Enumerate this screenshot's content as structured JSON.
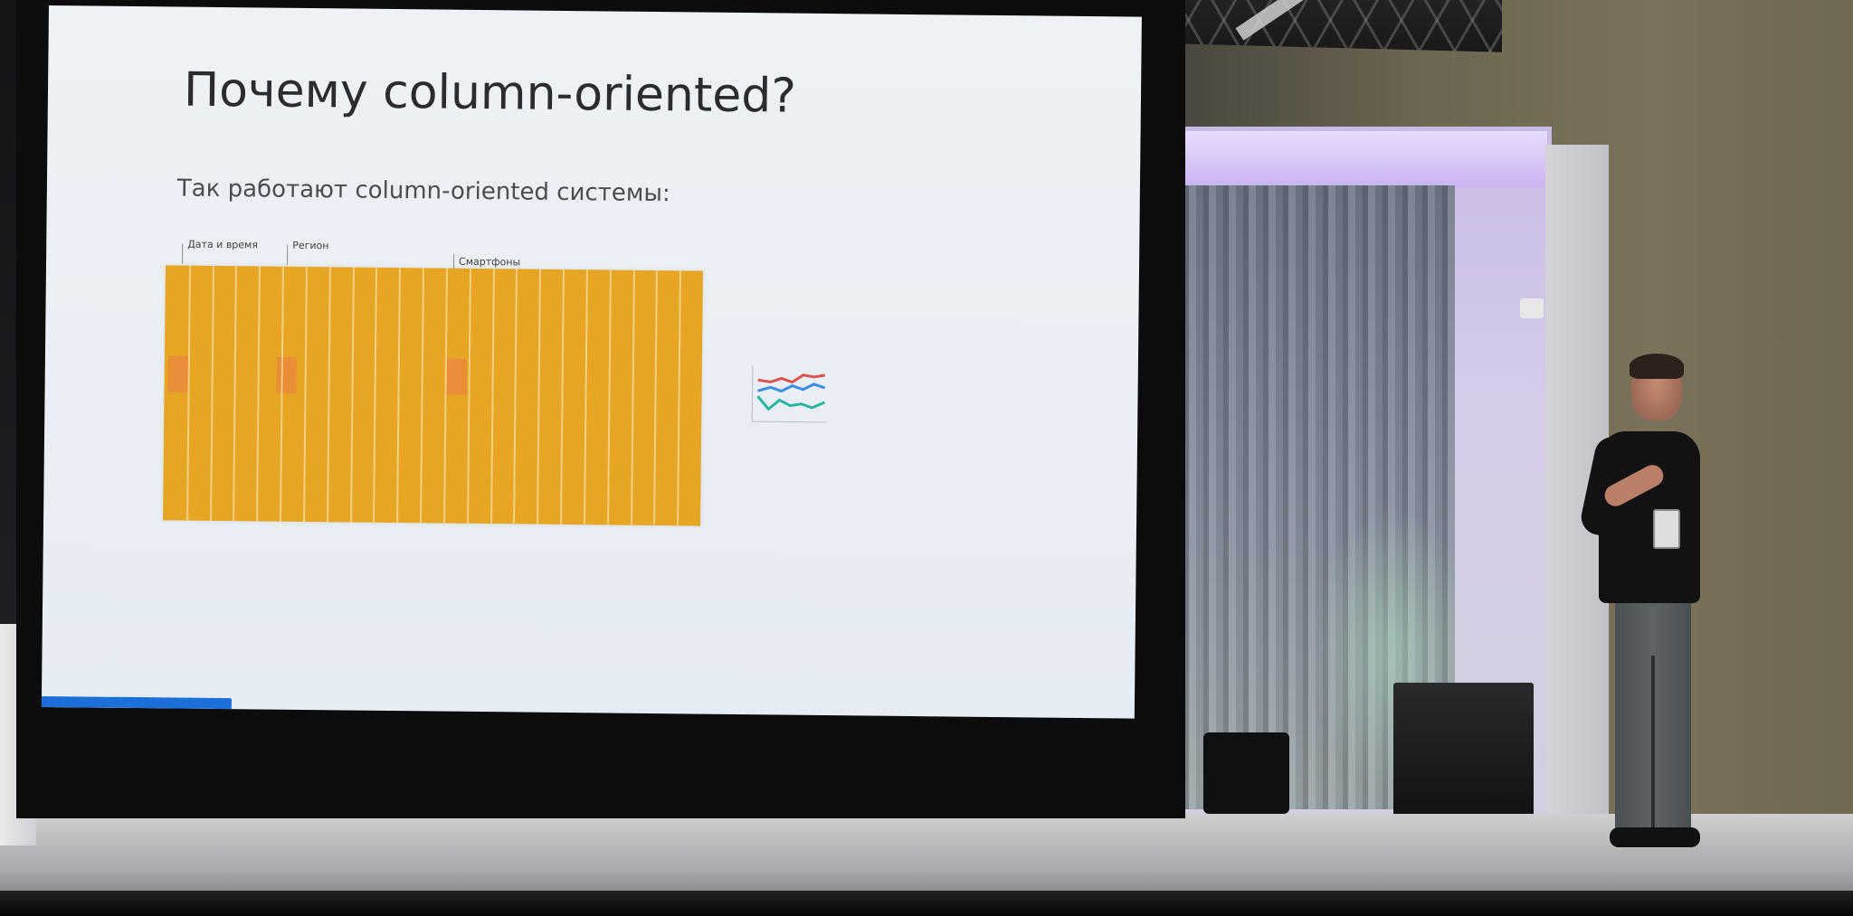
{
  "slide": {
    "title": "Почему column-oriented?",
    "subtitle": "Так работают column-oriented системы:",
    "column_labels": [
      "Дата и время",
      "Регион",
      "Смартфоны"
    ]
  },
  "colors": {
    "slide_background": "#e6ecf3",
    "column_fill": "#e6a623",
    "highlight_cell": "#e98a3a",
    "progress_accent": "#1c6fd8",
    "mini_chart_series": [
      "#d9534f",
      "#3a8ee6",
      "#2bb5a0"
    ]
  },
  "icons": {
    "mini_chart": "line-chart-icon"
  }
}
